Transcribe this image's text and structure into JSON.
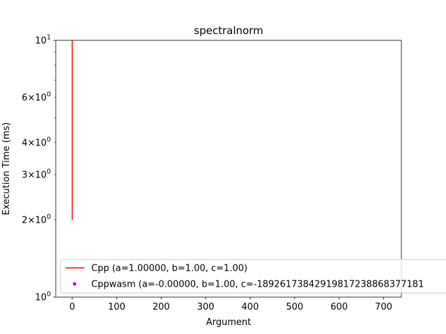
{
  "chart_data": {
    "type": "line",
    "title": "spectralnorm",
    "xlabel": "Argument",
    "ylabel": "Execution Time (ms)",
    "xlim": [
      -37,
      740
    ],
    "ylim": [
      1,
      10
    ],
    "yscale": "log",
    "x_ticks": [
      0,
      100,
      200,
      300,
      400,
      500,
      600,
      700
    ],
    "y_major_ticks": [
      {
        "value": 1,
        "base": "10",
        "exp": "0"
      },
      {
        "value": 10,
        "base": "10",
        "exp": "1"
      }
    ],
    "y_minor_labeled_ticks": [
      {
        "value": 2,
        "mant": "2",
        "base": "10",
        "exp": "0"
      },
      {
        "value": 3,
        "mant": "3",
        "base": "10",
        "exp": "0"
      },
      {
        "value": 4,
        "mant": "4",
        "base": "10",
        "exp": "0"
      },
      {
        "value": 6,
        "mant": "6",
        "base": "10",
        "exp": "0"
      }
    ],
    "y_minor_unlabeled_ticks": [
      5,
      7,
      8,
      9
    ],
    "grid": false,
    "legend_position": "lower-left",
    "series": [
      {
        "name": "Cpp (a=1.00000, b=1.00, c=1.00)",
        "kind": "line",
        "color": "#ff0000",
        "x": [
          0,
          0
        ],
        "y": [
          2,
          10
        ]
      },
      {
        "name": "Cppwasm (a=-0.00000, b=1.00, c=-18926173842919817238868377181",
        "kind": "marker",
        "color": "#bf00bf",
        "x": [],
        "y": []
      }
    ]
  }
}
